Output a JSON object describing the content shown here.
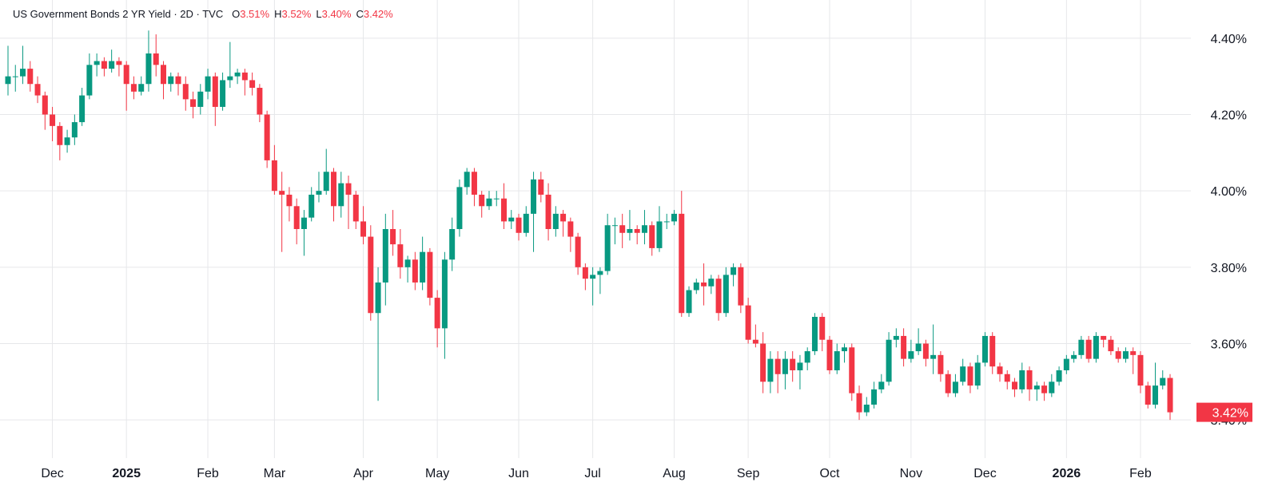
{
  "chart_data": {
    "type": "candlestick",
    "title": "US Government Bonds 2 YR Yield · 2D · TVC",
    "ohlc_names": [
      "O",
      "H",
      "L",
      "C"
    ],
    "ohlc_labels": [
      "3.51%",
      "3.52%",
      "3.40%",
      "3.42%"
    ],
    "last_price_label": "3.42%",
    "up_color": "#089981",
    "down_color": "#f23645",
    "ylim": [
      3.3,
      4.5
    ],
    "yticks": [
      {
        "value": 3.4,
        "label": "3.40%"
      },
      {
        "value": 3.6,
        "label": "3.60%"
      },
      {
        "value": 3.8,
        "label": "3.80%"
      },
      {
        "value": 4.0,
        "label": "4.00%"
      },
      {
        "value": 4.2,
        "label": "4.20%"
      },
      {
        "value": 4.4,
        "label": "4.40%"
      }
    ],
    "grid": true,
    "categories": [
      null,
      null,
      null,
      null,
      null,
      null,
      "Dec",
      null,
      null,
      null,
      null,
      null,
      null,
      null,
      null,
      null,
      "2025",
      null,
      null,
      null,
      null,
      null,
      null,
      null,
      null,
      null,
      null,
      "Feb",
      null,
      null,
      null,
      null,
      null,
      null,
      null,
      null,
      "Mar",
      null,
      null,
      null,
      null,
      null,
      null,
      null,
      null,
      null,
      null,
      null,
      "Apr",
      null,
      null,
      null,
      null,
      null,
      null,
      null,
      null,
      null,
      "May",
      null,
      null,
      null,
      null,
      null,
      null,
      null,
      null,
      null,
      null,
      "Jun",
      null,
      null,
      null,
      null,
      null,
      null,
      null,
      null,
      null,
      "Jul",
      null,
      null,
      null,
      null,
      null,
      null,
      null,
      null,
      null,
      null,
      "Aug",
      null,
      null,
      null,
      null,
      null,
      null,
      null,
      null,
      null,
      "Sep",
      null,
      null,
      null,
      null,
      null,
      null,
      null,
      null,
      null,
      null,
      "Oct",
      null,
      null,
      null,
      null,
      null,
      null,
      null,
      null,
      null,
      null,
      "Nov",
      null,
      null,
      null,
      null,
      null,
      null,
      null,
      null,
      null,
      "Dec",
      null,
      null,
      null,
      null,
      null,
      null,
      null,
      null,
      null,
      null,
      "2026",
      null,
      null,
      null,
      null,
      null,
      null,
      null,
      null,
      null,
      "Feb",
      null,
      null,
      null,
      null
    ],
    "ohlc": [
      [
        4.28,
        4.38,
        4.25,
        4.3
      ],
      [
        4.3,
        4.33,
        4.26,
        4.3
      ],
      [
        4.3,
        4.38,
        4.28,
        4.32
      ],
      [
        4.32,
        4.34,
        4.26,
        4.28
      ],
      [
        4.28,
        4.3,
        4.23,
        4.25
      ],
      [
        4.25,
        4.26,
        4.16,
        4.2
      ],
      [
        4.2,
        4.22,
        4.13,
        4.17
      ],
      [
        4.17,
        4.18,
        4.08,
        4.12
      ],
      [
        4.12,
        4.16,
        4.1,
        4.14
      ],
      [
        4.14,
        4.2,
        4.12,
        4.18
      ],
      [
        4.18,
        4.27,
        4.17,
        4.25
      ],
      [
        4.25,
        4.36,
        4.24,
        4.33
      ],
      [
        4.33,
        4.36,
        4.3,
        4.34
      ],
      [
        4.34,
        4.35,
        4.3,
        4.32
      ],
      [
        4.32,
        4.37,
        4.31,
        4.34
      ],
      [
        4.34,
        4.35,
        4.3,
        4.33
      ],
      [
        4.33,
        4.34,
        4.21,
        4.28
      ],
      [
        4.28,
        4.3,
        4.24,
        4.26
      ],
      [
        4.26,
        4.3,
        4.25,
        4.28
      ],
      [
        4.28,
        4.42,
        4.26,
        4.36
      ],
      [
        4.36,
        4.41,
        4.3,
        4.33
      ],
      [
        4.33,
        4.34,
        4.24,
        4.28
      ],
      [
        4.28,
        4.31,
        4.26,
        4.3
      ],
      [
        4.3,
        4.31,
        4.25,
        4.28
      ],
      [
        4.28,
        4.3,
        4.21,
        4.24
      ],
      [
        4.24,
        4.26,
        4.19,
        4.22
      ],
      [
        4.22,
        4.28,
        4.2,
        4.26
      ],
      [
        4.26,
        4.32,
        4.24,
        4.3
      ],
      [
        4.3,
        4.31,
        4.17,
        4.22
      ],
      [
        4.22,
        4.31,
        4.21,
        4.29
      ],
      [
        4.29,
        4.39,
        4.27,
        4.3
      ],
      [
        4.3,
        4.32,
        4.28,
        4.31
      ],
      [
        4.31,
        4.32,
        4.25,
        4.29
      ],
      [
        4.29,
        4.31,
        4.25,
        4.27
      ],
      [
        4.27,
        4.28,
        4.18,
        4.2
      ],
      [
        4.2,
        4.21,
        4.06,
        4.08
      ],
      [
        4.08,
        4.12,
        3.99,
        4.0
      ],
      [
        4.0,
        4.05,
        3.84,
        3.99
      ],
      [
        3.99,
        4.01,
        3.92,
        3.96
      ],
      [
        3.96,
        3.98,
        3.86,
        3.9
      ],
      [
        3.9,
        3.95,
        3.83,
        3.93
      ],
      [
        3.93,
        4.01,
        3.92,
        3.99
      ],
      [
        3.99,
        4.05,
        3.97,
        4.0
      ],
      [
        4.0,
        4.11,
        3.99,
        4.05
      ],
      [
        4.05,
        4.06,
        3.92,
        3.96
      ],
      [
        3.96,
        4.05,
        3.93,
        4.02
      ],
      [
        4.02,
        4.04,
        3.9,
        3.99
      ],
      [
        3.99,
        4.0,
        3.9,
        3.92
      ],
      [
        3.92,
        3.96,
        3.86,
        3.88
      ],
      [
        3.88,
        3.91,
        3.66,
        3.68
      ],
      [
        3.68,
        3.8,
        3.45,
        3.76
      ],
      [
        3.76,
        3.94,
        3.7,
        3.9
      ],
      [
        3.9,
        3.95,
        3.83,
        3.86
      ],
      [
        3.86,
        3.9,
        3.77,
        3.8
      ],
      [
        3.8,
        3.83,
        3.76,
        3.82
      ],
      [
        3.82,
        3.84,
        3.74,
        3.76
      ],
      [
        3.76,
        3.88,
        3.74,
        3.84
      ],
      [
        3.84,
        3.85,
        3.7,
        3.72
      ],
      [
        3.72,
        3.74,
        3.59,
        3.64
      ],
      [
        3.64,
        3.84,
        3.56,
        3.82
      ],
      [
        3.82,
        3.93,
        3.79,
        3.9
      ],
      [
        3.9,
        4.03,
        3.88,
        4.01
      ],
      [
        4.01,
        4.06,
        3.99,
        4.05
      ],
      [
        4.05,
        4.06,
        3.96,
        3.99
      ],
      [
        3.99,
        4.0,
        3.93,
        3.96
      ],
      [
        3.96,
        4.0,
        3.95,
        3.98
      ],
      [
        3.98,
        4.0,
        3.96,
        3.98
      ],
      [
        3.98,
        4.02,
        3.9,
        3.92
      ],
      [
        3.92,
        3.95,
        3.9,
        3.93
      ],
      [
        3.93,
        3.94,
        3.87,
        3.89
      ],
      [
        3.89,
        3.96,
        3.88,
        3.94
      ],
      [
        3.94,
        4.05,
        3.84,
        4.03
      ],
      [
        4.03,
        4.05,
        3.97,
        3.99
      ],
      [
        3.99,
        4.02,
        3.87,
        3.9
      ],
      [
        3.9,
        3.96,
        3.88,
        3.94
      ],
      [
        3.94,
        3.95,
        3.88,
        3.92
      ],
      [
        3.92,
        3.93,
        3.84,
        3.88
      ],
      [
        3.88,
        3.89,
        3.78,
        3.8
      ],
      [
        3.8,
        3.81,
        3.74,
        3.77
      ],
      [
        3.77,
        3.8,
        3.7,
        3.78
      ],
      [
        3.78,
        3.8,
        3.73,
        3.79
      ],
      [
        3.79,
        3.94,
        3.78,
        3.91
      ],
      [
        3.91,
        3.93,
        3.86,
        3.91
      ],
      [
        3.91,
        3.94,
        3.85,
        3.89
      ],
      [
        3.89,
        3.95,
        3.87,
        3.9
      ],
      [
        3.9,
        3.91,
        3.86,
        3.89
      ],
      [
        3.89,
        3.95,
        3.86,
        3.91
      ],
      [
        3.91,
        3.92,
        3.83,
        3.85
      ],
      [
        3.85,
        3.96,
        3.84,
        3.92
      ],
      [
        3.92,
        3.94,
        3.9,
        3.92
      ],
      [
        3.92,
        3.95,
        3.91,
        3.94
      ],
      [
        3.94,
        4.0,
        3.67,
        3.68
      ],
      [
        3.68,
        3.75,
        3.67,
        3.74
      ],
      [
        3.74,
        3.77,
        3.73,
        3.76
      ],
      [
        3.76,
        3.81,
        3.7,
        3.75
      ],
      [
        3.75,
        3.78,
        3.73,
        3.77
      ],
      [
        3.77,
        3.78,
        3.66,
        3.68
      ],
      [
        3.68,
        3.8,
        3.67,
        3.78
      ],
      [
        3.78,
        3.81,
        3.75,
        3.8
      ],
      [
        3.8,
        3.81,
        3.68,
        3.7
      ],
      [
        3.7,
        3.72,
        3.6,
        3.61
      ],
      [
        3.61,
        3.65,
        3.59,
        3.6
      ],
      [
        3.6,
        3.63,
        3.47,
        3.5
      ],
      [
        3.5,
        3.58,
        3.47,
        3.56
      ],
      [
        3.56,
        3.58,
        3.47,
        3.52
      ],
      [
        3.52,
        3.58,
        3.48,
        3.56
      ],
      [
        3.56,
        3.58,
        3.5,
        3.53
      ],
      [
        3.53,
        3.57,
        3.48,
        3.55
      ],
      [
        3.55,
        3.59,
        3.53,
        3.58
      ],
      [
        3.58,
        3.68,
        3.57,
        3.67
      ],
      [
        3.67,
        3.68,
        3.58,
        3.61
      ],
      [
        3.61,
        3.62,
        3.52,
        3.53
      ],
      [
        3.53,
        3.6,
        3.52,
        3.58
      ],
      [
        3.58,
        3.6,
        3.55,
        3.59
      ],
      [
        3.59,
        3.6,
        3.45,
        3.47
      ],
      [
        3.47,
        3.49,
        3.4,
        3.42
      ],
      [
        3.42,
        3.46,
        3.41,
        3.44
      ],
      [
        3.44,
        3.5,
        3.43,
        3.48
      ],
      [
        3.48,
        3.52,
        3.47,
        3.5
      ],
      [
        3.5,
        3.63,
        3.49,
        3.61
      ],
      [
        3.61,
        3.64,
        3.59,
        3.62
      ],
      [
        3.62,
        3.64,
        3.54,
        3.56
      ],
      [
        3.56,
        3.61,
        3.55,
        3.58
      ],
      [
        3.58,
        3.64,
        3.57,
        3.6
      ],
      [
        3.6,
        3.61,
        3.54,
        3.56
      ],
      [
        3.56,
        3.65,
        3.52,
        3.57
      ],
      [
        3.57,
        3.58,
        3.5,
        3.52
      ],
      [
        3.52,
        3.53,
        3.46,
        3.47
      ],
      [
        3.47,
        3.52,
        3.46,
        3.5
      ],
      [
        3.5,
        3.56,
        3.49,
        3.54
      ],
      [
        3.54,
        3.55,
        3.47,
        3.49
      ],
      [
        3.49,
        3.57,
        3.48,
        3.55
      ],
      [
        3.55,
        3.63,
        3.54,
        3.62
      ],
      [
        3.62,
        3.63,
        3.52,
        3.54
      ],
      [
        3.54,
        3.55,
        3.5,
        3.52
      ],
      [
        3.52,
        3.53,
        3.48,
        3.5
      ],
      [
        3.5,
        3.51,
        3.46,
        3.48
      ],
      [
        3.48,
        3.55,
        3.47,
        3.53
      ],
      [
        3.53,
        3.54,
        3.45,
        3.48
      ],
      [
        3.48,
        3.5,
        3.45,
        3.49
      ],
      [
        3.49,
        3.5,
        3.45,
        3.47
      ],
      [
        3.47,
        3.52,
        3.46,
        3.5
      ],
      [
        3.5,
        3.54,
        3.49,
        3.53
      ],
      [
        3.53,
        3.57,
        3.52,
        3.56
      ],
      [
        3.56,
        3.58,
        3.55,
        3.57
      ],
      [
        3.57,
        3.62,
        3.56,
        3.61
      ],
      [
        3.61,
        3.62,
        3.55,
        3.56
      ],
      [
        3.56,
        3.63,
        3.55,
        3.62
      ],
      [
        3.62,
        3.62,
        3.59,
        3.61
      ],
      [
        3.61,
        3.62,
        3.57,
        3.58
      ],
      [
        3.58,
        3.59,
        3.55,
        3.56
      ],
      [
        3.56,
        3.59,
        3.55,
        3.58
      ],
      [
        3.58,
        3.59,
        3.52,
        3.57
      ],
      [
        3.57,
        3.58,
        3.47,
        3.49
      ],
      [
        3.49,
        3.5,
        3.43,
        3.44
      ],
      [
        3.44,
        3.55,
        3.43,
        3.49
      ],
      [
        3.49,
        3.53,
        3.48,
        3.51
      ],
      [
        3.51,
        3.52,
        3.4,
        3.42
      ]
    ]
  }
}
